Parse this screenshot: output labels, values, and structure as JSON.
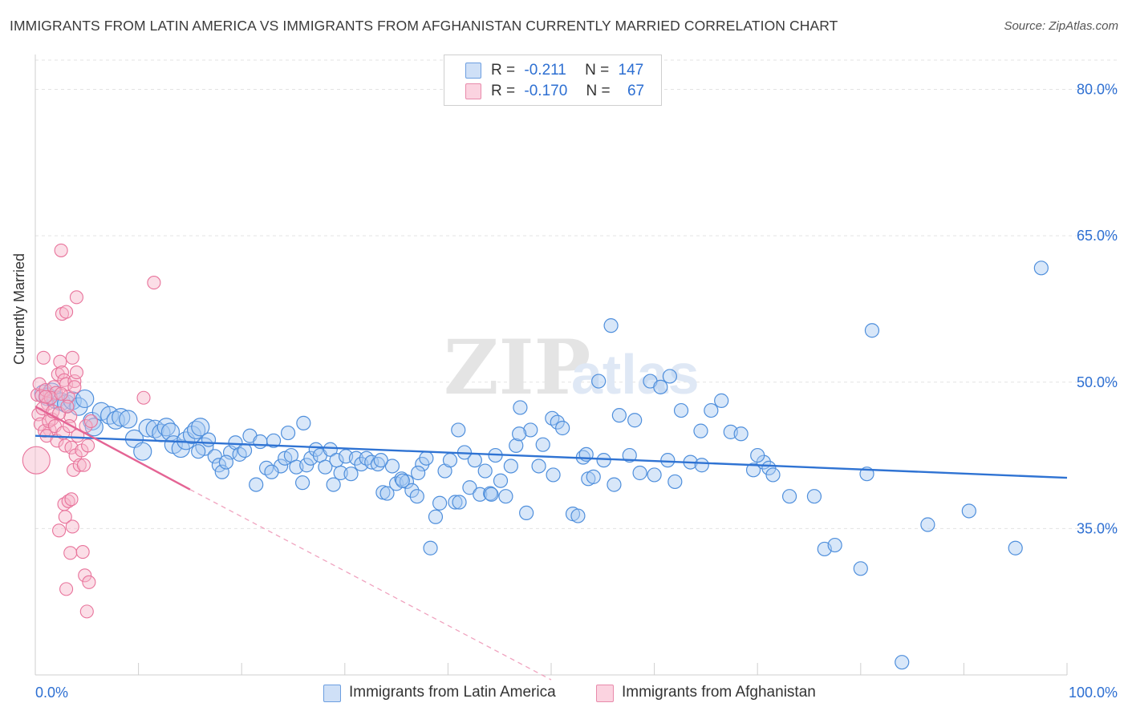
{
  "title": "IMMIGRANTS FROM LATIN AMERICA VS IMMIGRANTS FROM AFGHANISTAN CURRENTLY MARRIED CORRELATION CHART",
  "source": "Source: ZipAtlas.com",
  "watermark": {
    "zip": "ZIP",
    "atlas": "atlas"
  },
  "legend": {
    "rows": [
      {
        "r_label": "R =",
        "r_value": "-0.211",
        "n_label": "N =",
        "n_value": "147",
        "color": "#9ec3f0"
      },
      {
        "r_label": "R =",
        "r_value": "-0.170",
        "n_label": "N =",
        "n_value": "67",
        "color": "#f7b6ca"
      }
    ]
  },
  "bottom_legend": [
    {
      "label": "Immigrants from Latin America",
      "color": "#9ec3f0"
    },
    {
      "label": "Immigrants from Afghanistan",
      "color": "#f7b6ca"
    }
  ],
  "chart_data": {
    "type": "scatter",
    "ylabel": "Currently Married",
    "xlim": [
      0,
      100
    ],
    "ylim": [
      20,
      83
    ],
    "x_tick_labels": [
      "0.0%",
      "100.0%"
    ],
    "y_ticks": [
      35,
      50,
      65,
      80
    ],
    "y_tick_labels": [
      "35.0%",
      "50.0%",
      "65.0%",
      "80.0%"
    ],
    "grid": true,
    "colors": {
      "latin": "#4f8fdc",
      "latin_fill": "#a9c9f2",
      "afg": "#e8739b",
      "afg_fill": "#f7b6ca",
      "tick": "#2d6fd2"
    },
    "series": [
      {
        "name": "Immigrants from Latin America",
        "trend": {
          "x": [
            0,
            100
          ],
          "y": [
            44.5,
            40.2
          ]
        },
        "points": [
          [
            0.8,
            48.8
          ],
          [
            1.2,
            48.5
          ],
          [
            1.6,
            49.0
          ],
          [
            2.0,
            48.2
          ],
          [
            2.5,
            48.0
          ],
          [
            3.0,
            47.8
          ],
          [
            3.6,
            48.1
          ],
          [
            4.2,
            47.5
          ],
          [
            4.8,
            48.3
          ],
          [
            5.5,
            46.0
          ],
          [
            5.7,
            45.4
          ],
          [
            6.4,
            47.0
          ],
          [
            7.2,
            46.6
          ],
          [
            7.8,
            46.1
          ],
          [
            8.3,
            46.4
          ],
          [
            9.0,
            46.2
          ],
          [
            9.6,
            44.2
          ],
          [
            10.4,
            42.9
          ],
          [
            10.9,
            45.3
          ],
          [
            11.6,
            45.2
          ],
          [
            12.2,
            44.8
          ],
          [
            12.7,
            45.4
          ],
          [
            13.1,
            44.9
          ],
          [
            13.4,
            43.6
          ],
          [
            14.1,
            43.2
          ],
          [
            14.6,
            44.0
          ],
          [
            15.2,
            44.6
          ],
          [
            15.6,
            45.1
          ],
          [
            16.0,
            45.4
          ],
          [
            16.4,
            43.4
          ],
          [
            16.8,
            44.1
          ],
          [
            17.4,
            42.4
          ],
          [
            17.8,
            41.5
          ],
          [
            18.1,
            40.8
          ],
          [
            18.9,
            42.8
          ],
          [
            19.4,
            43.8
          ],
          [
            19.8,
            42.6
          ],
          [
            20.3,
            43.0
          ],
          [
            20.8,
            44.5
          ],
          [
            21.4,
            39.5
          ],
          [
            21.8,
            43.9
          ],
          [
            22.4,
            41.2
          ],
          [
            23.1,
            44.0
          ],
          [
            23.8,
            41.4
          ],
          [
            24.2,
            42.2
          ],
          [
            24.8,
            42.5
          ],
          [
            25.3,
            41.3
          ],
          [
            25.9,
            39.7
          ],
          [
            26.3,
            41.5
          ],
          [
            26.7,
            42.2
          ],
          [
            27.2,
            43.1
          ],
          [
            27.6,
            42.5
          ],
          [
            28.1,
            41.3
          ],
          [
            28.6,
            43.1
          ],
          [
            29.2,
            42.0
          ],
          [
            29.6,
            40.7
          ],
          [
            30.1,
            42.4
          ],
          [
            30.6,
            40.6
          ],
          [
            31.1,
            42.2
          ],
          [
            31.6,
            41.6
          ],
          [
            32.1,
            42.2
          ],
          [
            32.6,
            41.8
          ],
          [
            33.2,
            41.6
          ],
          [
            33.7,
            38.7
          ],
          [
            34.1,
            38.6
          ],
          [
            34.6,
            41.4
          ],
          [
            35.0,
            39.6
          ],
          [
            35.5,
            40.1
          ],
          [
            36.0,
            39.8
          ],
          [
            36.5,
            38.9
          ],
          [
            37.0,
            38.3
          ],
          [
            37.5,
            41.6
          ],
          [
            37.9,
            42.2
          ],
          [
            38.3,
            33.0
          ],
          [
            38.8,
            36.2
          ],
          [
            39.2,
            37.6
          ],
          [
            39.7,
            40.9
          ],
          [
            40.2,
            42.0
          ],
          [
            40.7,
            37.7
          ],
          [
            41.1,
            37.7
          ],
          [
            41.6,
            42.8
          ],
          [
            42.1,
            39.2
          ],
          [
            42.6,
            42.0
          ],
          [
            43.1,
            38.5
          ],
          [
            43.6,
            40.9
          ],
          [
            44.1,
            38.6
          ],
          [
            44.6,
            42.5
          ],
          [
            45.1,
            39.9
          ],
          [
            45.6,
            38.3
          ],
          [
            46.1,
            41.4
          ],
          [
            46.6,
            43.5
          ],
          [
            47.0,
            47.4
          ],
          [
            47.6,
            36.6
          ],
          [
            48.0,
            45.1
          ],
          [
            48.8,
            41.4
          ],
          [
            49.2,
            43.6
          ],
          [
            50.1,
            46.3
          ],
          [
            50.6,
            45.9
          ],
          [
            51.1,
            45.3
          ],
          [
            52.1,
            36.5
          ],
          [
            52.6,
            36.3
          ],
          [
            53.1,
            42.3
          ],
          [
            53.6,
            40.1
          ],
          [
            54.1,
            40.3
          ],
          [
            54.6,
            50.1
          ],
          [
            55.1,
            42.0
          ],
          [
            56.1,
            39.5
          ],
          [
            56.6,
            46.6
          ],
          [
            57.6,
            42.5
          ],
          [
            58.1,
            46.1
          ],
          [
            58.6,
            40.7
          ],
          [
            59.6,
            50.1
          ],
          [
            60.6,
            49.5
          ],
          [
            61.5,
            50.6
          ],
          [
            62.6,
            47.1
          ],
          [
            63.5,
            41.8
          ],
          [
            64.5,
            45.0
          ],
          [
            65.5,
            47.1
          ],
          [
            66.5,
            48.1
          ],
          [
            67.4,
            44.9
          ],
          [
            68.4,
            44.7
          ],
          [
            69.6,
            41.0
          ],
          [
            70.6,
            41.8
          ],
          [
            71.1,
            41.2
          ],
          [
            71.5,
            40.5
          ],
          [
            73.1,
            38.3
          ],
          [
            75.5,
            38.3
          ],
          [
            76.5,
            32.9
          ],
          [
            77.5,
            33.3
          ],
          [
            80.0,
            30.9
          ],
          [
            80.6,
            40.6
          ],
          [
            81.1,
            55.3
          ],
          [
            84.0,
            21.3
          ],
          [
            86.5,
            35.4
          ],
          [
            90.5,
            36.8
          ],
          [
            95.0,
            33.0
          ],
          [
            97.5,
            61.7
          ],
          [
            50.2,
            40.5
          ],
          [
            44.2,
            38.5
          ],
          [
            60.0,
            40.5
          ],
          [
            62.0,
            39.8
          ],
          [
            70.0,
            42.5
          ],
          [
            26.0,
            45.8
          ],
          [
            24.5,
            44.8
          ],
          [
            33.5,
            42.0
          ],
          [
            55.8,
            55.8
          ],
          [
            61.3,
            42.0
          ],
          [
            64.6,
            41.5
          ],
          [
            46.9,
            44.7
          ],
          [
            35.6,
            39.9
          ],
          [
            15.8,
            42.9
          ],
          [
            22.9,
            40.8
          ],
          [
            18.5,
            41.8
          ],
          [
            28.9,
            39.5
          ],
          [
            37.1,
            40.7
          ],
          [
            41.0,
            45.1
          ],
          [
            53.4,
            42.6
          ]
        ]
      },
      {
        "name": "Immigrants from Afghanistan",
        "trend": {
          "x": [
            0,
            15
          ],
          "y": [
            47.5,
            39.0
          ]
        },
        "trend_extension": {
          "x": [
            15,
            50
          ],
          "y": [
            39.0,
            19.5
          ]
        },
        "points": [
          [
            0.2,
            48.7
          ],
          [
            0.4,
            49.8
          ],
          [
            0.6,
            48.6
          ],
          [
            0.8,
            52.5
          ],
          [
            1.0,
            49.2
          ],
          [
            1.2,
            47.8
          ],
          [
            1.4,
            45.1
          ],
          [
            1.6,
            46.2
          ],
          [
            1.8,
            49.5
          ],
          [
            2.0,
            48.9
          ],
          [
            2.2,
            50.8
          ],
          [
            2.4,
            52.1
          ],
          [
            2.6,
            51.0
          ],
          [
            2.8,
            50.2
          ],
          [
            3.0,
            49.8
          ],
          [
            3.2,
            48.5
          ],
          [
            3.4,
            46.5
          ],
          [
            3.6,
            52.5
          ],
          [
            3.8,
            50.1
          ],
          [
            4.0,
            51.0
          ],
          [
            0.3,
            46.7
          ],
          [
            0.5,
            45.7
          ],
          [
            0.7,
            47.3
          ],
          [
            0.9,
            45.0
          ],
          [
            1.1,
            44.5
          ],
          [
            1.3,
            46.0
          ],
          [
            1.5,
            48.4
          ],
          [
            1.7,
            47.0
          ],
          [
            1.9,
            45.5
          ],
          [
            2.1,
            44.0
          ],
          [
            2.3,
            46.8
          ],
          [
            2.5,
            48.8
          ],
          [
            2.7,
            44.8
          ],
          [
            2.9,
            43.5
          ],
          [
            3.1,
            47.5
          ],
          [
            3.3,
            45.5
          ],
          [
            3.5,
            43.3
          ],
          [
            3.7,
            41.0
          ],
          [
            3.9,
            42.5
          ],
          [
            4.1,
            44.5
          ],
          [
            4.3,
            41.5
          ],
          [
            4.5,
            43.0
          ],
          [
            4.7,
            41.5
          ],
          [
            4.9,
            45.5
          ],
          [
            5.1,
            43.5
          ],
          [
            5.4,
            46.0
          ],
          [
            2.6,
            57.0
          ],
          [
            2.9,
            36.2
          ],
          [
            2.3,
            34.8
          ],
          [
            2.8,
            37.5
          ],
          [
            3.2,
            37.8
          ],
          [
            3.5,
            38.0
          ],
          [
            3.4,
            32.5
          ],
          [
            4.6,
            32.6
          ],
          [
            4.8,
            30.2
          ],
          [
            5.2,
            29.5
          ],
          [
            3.0,
            28.8
          ],
          [
            5.0,
            26.5
          ],
          [
            2.5,
            63.5
          ],
          [
            4.0,
            58.7
          ],
          [
            3.0,
            57.2
          ],
          [
            11.5,
            60.2
          ],
          [
            10.5,
            48.4
          ],
          [
            3.8,
            49.5
          ],
          [
            1.0,
            48.5
          ],
          [
            3.6,
            35.2
          ],
          [
            0.1,
            42.0
          ]
        ]
      }
    ]
  }
}
